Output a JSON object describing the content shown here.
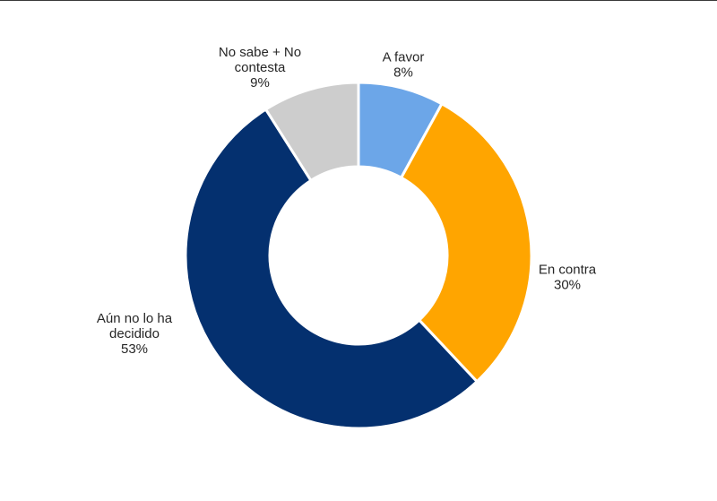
{
  "chart_data": {
    "type": "pie",
    "variant": "donut",
    "title": "",
    "slices": [
      {
        "label": "A favor",
        "label_lines": [
          "A favor"
        ],
        "value": 8,
        "value_label": "8%",
        "color": "#6ca6e8"
      },
      {
        "label": "En contra",
        "label_lines": [
          "En contra"
        ],
        "value": 30,
        "value_label": "30%",
        "color": "#ffa500"
      },
      {
        "label": "Aún no lo ha decidido",
        "label_lines": [
          "Aún no lo ha",
          "decidido"
        ],
        "value": 53,
        "value_label": "53%",
        "color": "#04306f"
      },
      {
        "label": "No sabe + No contesta",
        "label_lines": [
          "No sabe + No",
          "contesta"
        ],
        "value": 9,
        "value_label": "9%",
        "color": "#cdcdcd"
      }
    ],
    "legend": "none"
  }
}
